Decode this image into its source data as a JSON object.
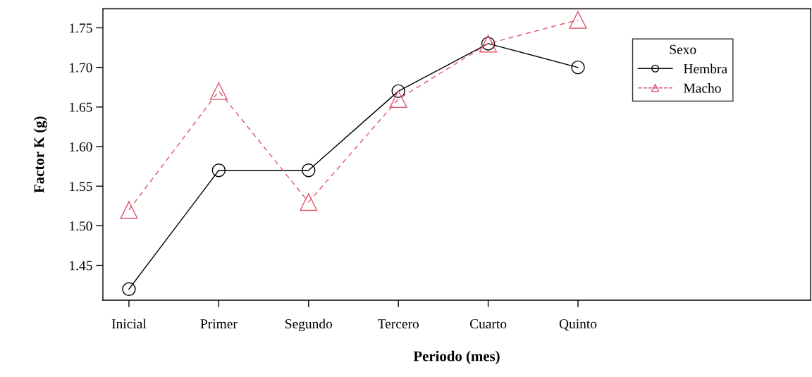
{
  "chart_data": {
    "type": "line",
    "xlabel": "Periodo (mes)",
    "ylabel": "Factor K (g)",
    "legend_title": "Sexo",
    "categories": [
      "Inicial",
      "Primer",
      "Segundo",
      "Tercero",
      "Cuarto",
      "Quinto"
    ],
    "series": [
      {
        "name": "Hembra",
        "color": "#000000",
        "marker": "circle",
        "line_style": "solid",
        "values": [
          1.42,
          1.57,
          1.57,
          1.67,
          1.73,
          1.7
        ]
      },
      {
        "name": "Macho",
        "color": "#df536b",
        "marker": "triangle",
        "line_style": "dashed",
        "values": [
          1.52,
          1.67,
          1.53,
          1.66,
          1.73,
          1.76
        ]
      }
    ],
    "ylim": [
      1.406,
      1.774
    ],
    "yticks": [
      1.45,
      {
        "value": 1.5,
        "label": "1.50"
      },
      1.55,
      {
        "value": 1.6,
        "label": "1.60"
      },
      1.65,
      {
        "value": 1.7,
        "label": "1.70"
      },
      1.75
    ],
    "grid": false,
    "legend": "top right"
  }
}
